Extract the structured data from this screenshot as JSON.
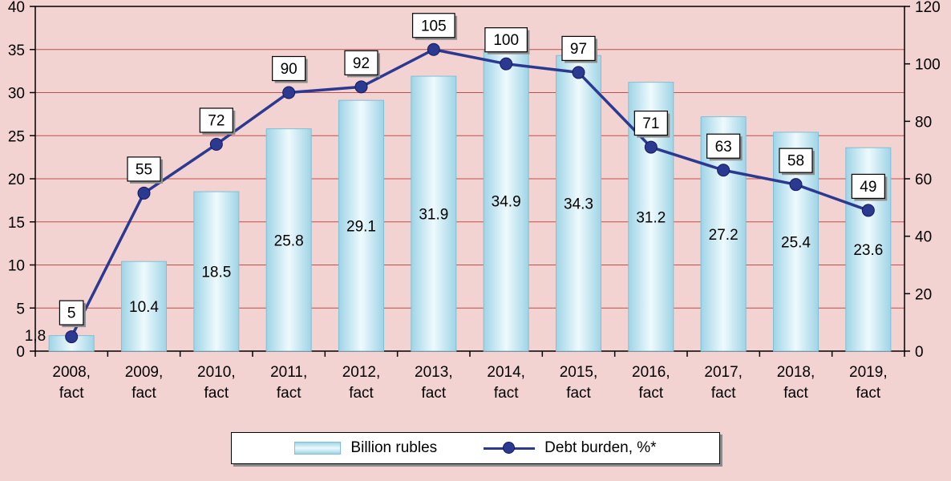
{
  "chart_data": {
    "type": "combo-bar-line",
    "title": "",
    "categories": [
      {
        "line1": "2008,",
        "line2": "fact"
      },
      {
        "line1": "2009,",
        "line2": "fact"
      },
      {
        "line1": "2010,",
        "line2": "fact"
      },
      {
        "line1": "2011,",
        "line2": "fact"
      },
      {
        "line1": "2012,",
        "line2": "fact"
      },
      {
        "line1": "2013,",
        "line2": "fact"
      },
      {
        "line1": "2014,",
        "line2": "fact"
      },
      {
        "line1": "2015,",
        "line2": "fact"
      },
      {
        "line1": "2016,",
        "line2": "fact"
      },
      {
        "line1": "2017,",
        "line2": "fact"
      },
      {
        "line1": "2018,",
        "line2": "fact"
      },
      {
        "line1": "2019,",
        "line2": "fact"
      }
    ],
    "series": [
      {
        "name": "Billion rubles",
        "type": "bar",
        "axis": "left",
        "values": [
          1.8,
          10.4,
          18.5,
          25.8,
          29.1,
          31.9,
          34.9,
          34.3,
          31.2,
          27.2,
          25.4,
          23.6
        ],
        "labels": [
          "1,8",
          "10.4",
          "18.5",
          "25.8",
          "29.1",
          "31.9",
          "34.9",
          "34.3",
          "31.2",
          "27.2",
          "25.4",
          "23.6"
        ]
      },
      {
        "name": "Debt  burden, %*",
        "type": "line",
        "axis": "right",
        "values": [
          5,
          55,
          72,
          90,
          92,
          105,
          100,
          97,
          71,
          63,
          58,
          49
        ],
        "labels": [
          "5",
          "55",
          "72",
          "90",
          "92",
          "105",
          "100",
          "97",
          "71",
          "63",
          "58",
          "49"
        ]
      }
    ],
    "left_axis": {
      "min": 0,
      "max": 40,
      "step": 5,
      "ticks": [
        "0",
        "5",
        "10",
        "15",
        "20",
        "25",
        "30",
        "35",
        "40"
      ]
    },
    "right_axis": {
      "min": 0,
      "max": 120,
      "step": 20,
      "ticks": [
        "0",
        "20",
        "40",
        "60",
        "80",
        "100",
        "120"
      ]
    },
    "grid": true,
    "legend_position": "bottom",
    "colors": {
      "background": "#f3d2d2",
      "gridline": "#c0504d",
      "bar_edge": "#9fd4e6",
      "bar_center": "#eefafd",
      "bar_stroke": "#7fc0d6",
      "line": "#2b3990",
      "marker_stroke": "#151a5e",
      "label_box_bg": "#ffffff",
      "label_box_border": "#000000",
      "label_box_shadow": "#8c8c8c",
      "axis": "#000000"
    }
  }
}
